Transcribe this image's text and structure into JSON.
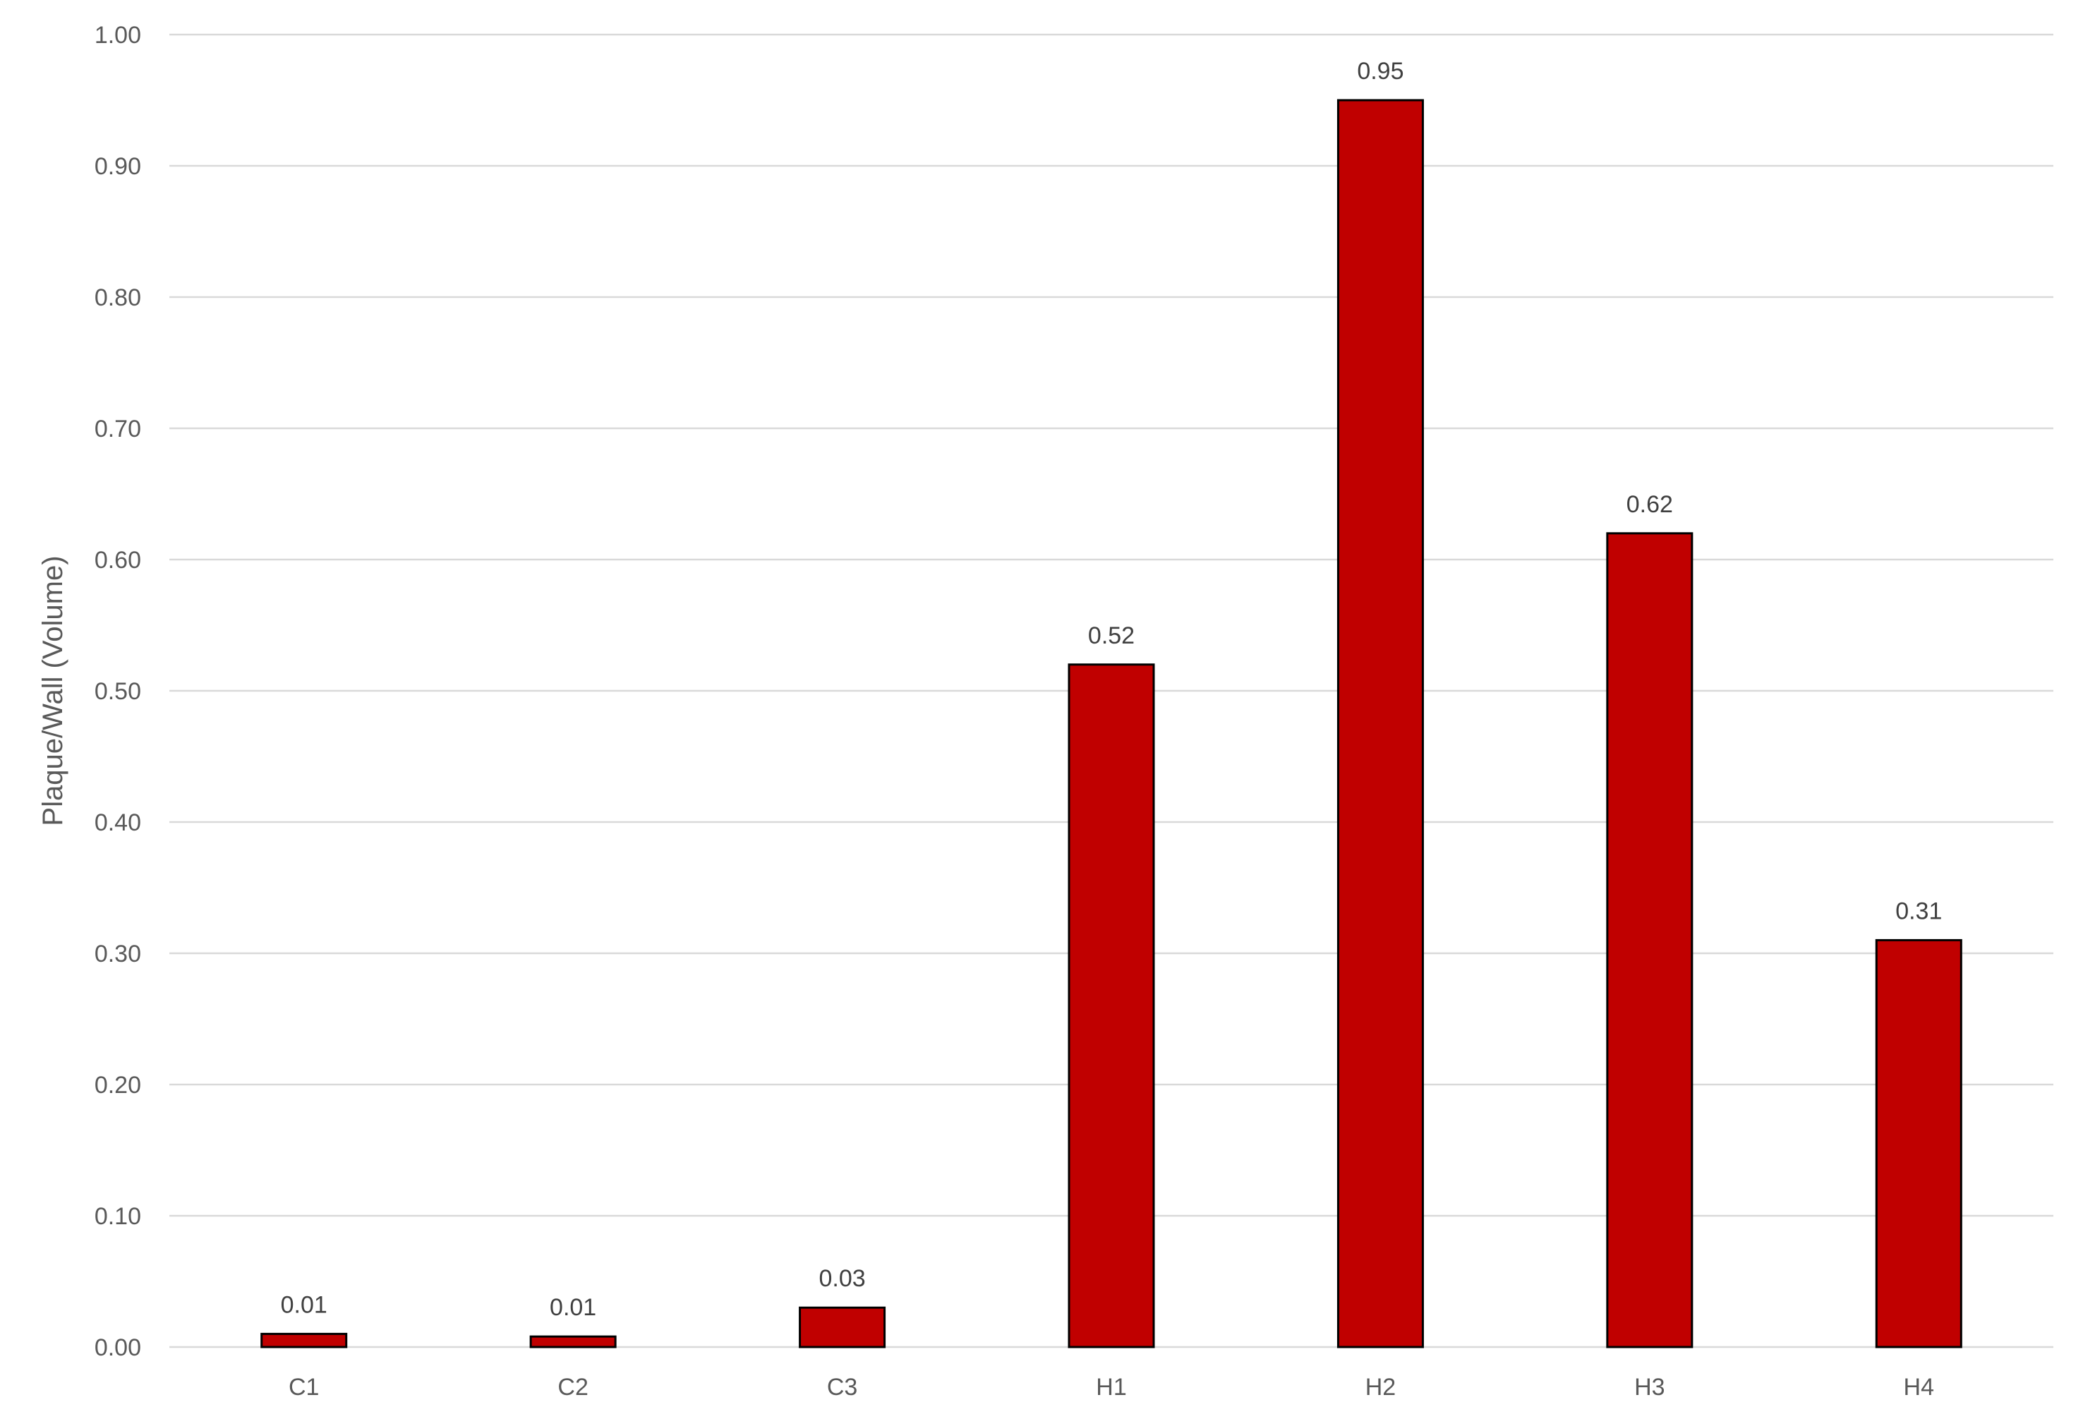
{
  "chart_data": {
    "type": "bar",
    "title": "",
    "xlabel": "",
    "ylabel": "Plaque/Wall (Volume)",
    "categories": [
      "C1",
      "C2",
      "C3",
      "H1",
      "H2",
      "H3",
      "H4"
    ],
    "values": [
      0.01,
      0.008,
      0.03,
      0.52,
      0.95,
      0.62,
      0.31
    ],
    "data_labels": [
      "0.01",
      "0.01",
      "0.03",
      "0.52",
      "0.95",
      "0.62",
      "0.31"
    ],
    "ylim": [
      0,
      1.0
    ],
    "yticks": [
      0.0,
      0.1,
      0.2,
      0.3,
      0.4,
      0.5,
      0.6,
      0.7,
      0.8,
      0.9,
      1.0
    ],
    "ytick_labels": [
      "0.00",
      "0.10",
      "0.20",
      "0.30",
      "0.40",
      "0.50",
      "0.60",
      "0.70",
      "0.80",
      "0.90",
      "1.00"
    ],
    "grid": true,
    "legend": "none",
    "bar_color": "#C00000",
    "bar_edge_color": "#000000"
  }
}
